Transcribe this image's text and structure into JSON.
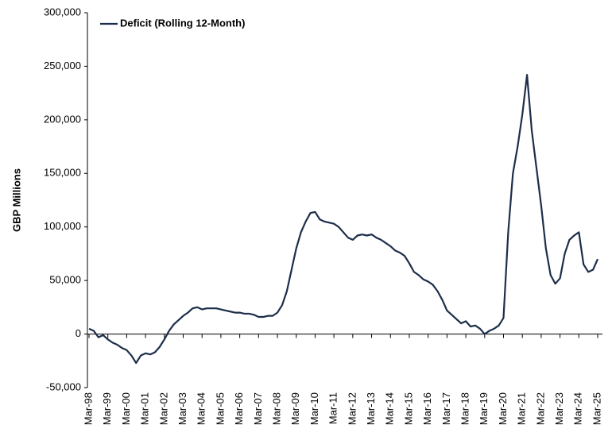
{
  "chart_data": {
    "type": "line",
    "y_axis_label": "GBP Millions",
    "categories": [
      "Mar-98",
      null,
      null,
      null,
      "Mar-99",
      null,
      null,
      null,
      "Mar-00",
      null,
      null,
      null,
      "Mar-01",
      null,
      null,
      null,
      "Mar-02",
      null,
      null,
      null,
      "Mar-03",
      null,
      null,
      null,
      "Mar-04",
      null,
      null,
      null,
      "Mar-05",
      null,
      null,
      null,
      "Mar-06",
      null,
      null,
      null,
      "Mar-07",
      null,
      null,
      null,
      "Mar-08",
      null,
      null,
      null,
      "Mar-09",
      null,
      null,
      null,
      "Mar-10",
      null,
      null,
      null,
      "Mar-11",
      null,
      null,
      null,
      "Mar-12",
      null,
      null,
      null,
      "Mar-13",
      null,
      null,
      null,
      "Mar-14",
      null,
      null,
      null,
      "Mar-15",
      null,
      null,
      null,
      "Mar-16",
      null,
      null,
      null,
      "Mar-17",
      null,
      null,
      null,
      "Mar-18",
      null,
      null,
      null,
      "Mar-19",
      null,
      null,
      null,
      "Mar-20",
      null,
      null,
      null,
      "Mar-21",
      null,
      null,
      null,
      "Mar-22",
      null,
      null,
      null,
      "Mar-23",
      null,
      null,
      null,
      "Mar-24",
      null,
      null,
      null,
      "Mar-25"
    ],
    "series": [
      {
        "name": "Deficit (Rolling 12-Month)",
        "color": "#1c2e4a",
        "values": [
          5000,
          3000,
          -3000,
          -1000,
          -5000,
          -8000,
          -10000,
          -13000,
          -15000,
          -20000,
          -27000,
          -20000,
          -18000,
          -19000,
          -17000,
          -12000,
          -5000,
          3000,
          9000,
          13000,
          17000,
          20000,
          24000,
          25000,
          23000,
          24000,
          24000,
          24000,
          23000,
          22000,
          21000,
          20000,
          20000,
          19000,
          19000,
          18000,
          16000,
          16000,
          17000,
          17000,
          20000,
          27000,
          40000,
          60000,
          80000,
          95000,
          105000,
          113000,
          114000,
          107000,
          105000,
          104000,
          103000,
          100000,
          95000,
          90000,
          88000,
          92000,
          93000,
          92000,
          93000,
          90000,
          88000,
          85000,
          82000,
          78000,
          76000,
          73000,
          66000,
          58000,
          55000,
          51000,
          49000,
          46000,
          40000,
          32000,
          22000,
          18000,
          14000,
          10000,
          12000,
          7000,
          8000,
          5000,
          0,
          3000,
          5000,
          8000,
          15000,
          95000,
          150000,
          175000,
          205000,
          242000,
          190000,
          155000,
          120000,
          80000,
          55000,
          47000,
          52000,
          75000,
          88000,
          92000,
          95000,
          65000,
          58000,
          60000,
          70000
        ]
      }
    ],
    "ylim": [
      -50000,
      300000
    ],
    "yticks": [
      {
        "value": -50000,
        "label": "-50,000"
      },
      0,
      {
        "value": 50000,
        "label": "50,000"
      },
      {
        "value": 100000,
        "label": "100,000"
      },
      {
        "value": 150000,
        "label": "150,000"
      },
      {
        "value": 200000,
        "label": "200,000"
      },
      {
        "value": 250000,
        "label": "250,000"
      },
      {
        "value": 300000,
        "label": "300,000"
      }
    ],
    "grid": false,
    "legend": "top-left"
  }
}
